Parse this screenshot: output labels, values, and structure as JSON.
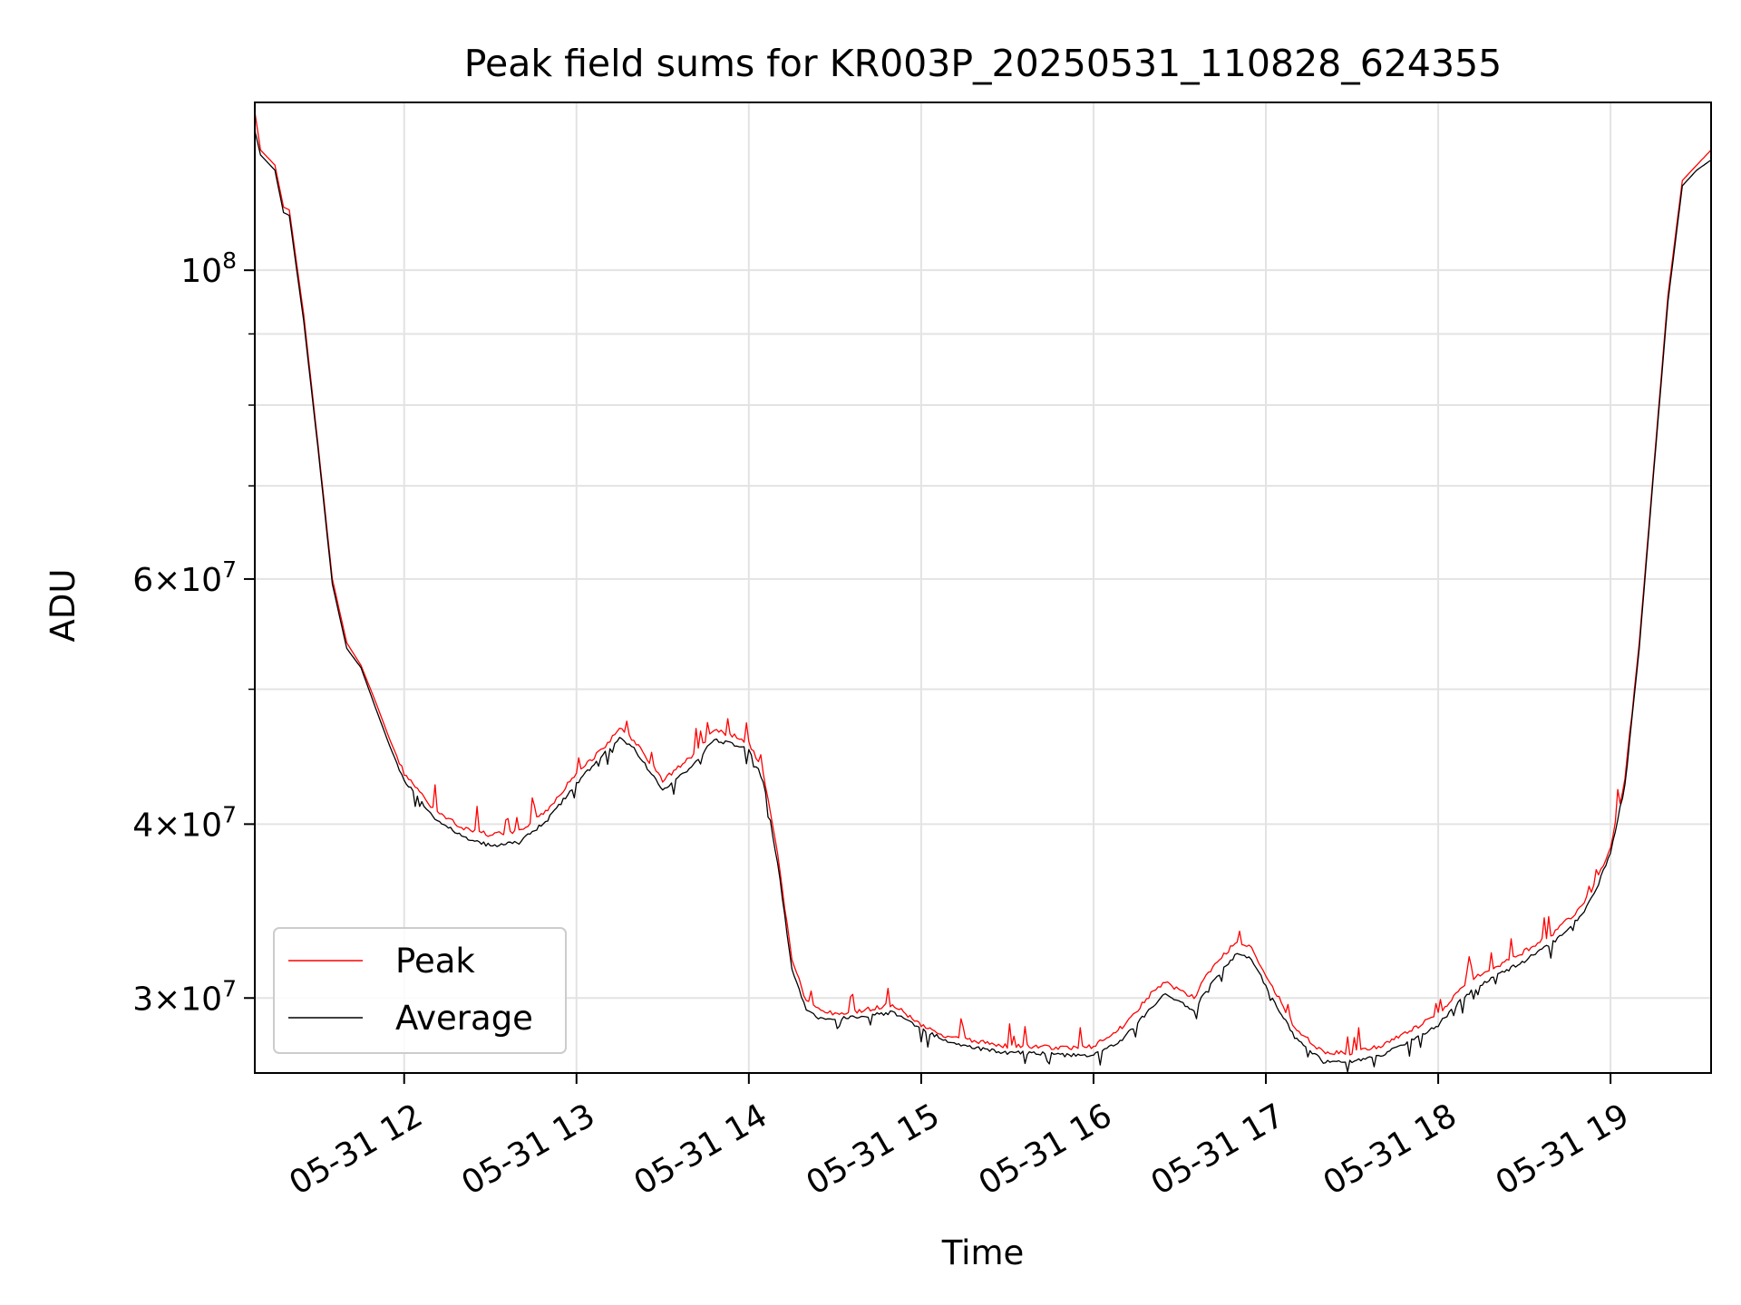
{
  "chart_data": {
    "type": "line",
    "title": "Peak field sums for KR003P_20250531_110828_624355",
    "xlabel": "Time",
    "ylabel": "ADU",
    "y_scale": "log",
    "ylim": [
      26500000,
      132000000
    ],
    "x_range": [
      "2025-05-31 11:08",
      "2025-05-31 19:35"
    ],
    "grid": true,
    "legend_position": "lower-left",
    "x_ticks": [
      {
        "label": "05-31 12",
        "value": "2025-05-31 12:00"
      },
      {
        "label": "05-31 13",
        "value": "2025-05-31 13:00"
      },
      {
        "label": "05-31 14",
        "value": "2025-05-31 14:00"
      },
      {
        "label": "05-31 15",
        "value": "2025-05-31 15:00"
      },
      {
        "label": "05-31 16",
        "value": "2025-05-31 16:00"
      },
      {
        "label": "05-31 17",
        "value": "2025-05-31 17:00"
      },
      {
        "label": "05-31 18",
        "value": "2025-05-31 18:00"
      },
      {
        "label": "05-31 19",
        "value": "2025-05-31 19:00"
      }
    ],
    "y_ticks_major": [
      {
        "label_mantissa": "3",
        "label_exponent": "7",
        "value": 30000000
      },
      {
        "label_mantissa": "4",
        "label_exponent": "7",
        "value": 40000000
      },
      {
        "label_mantissa": "6",
        "label_exponent": "7",
        "value": 60000000
      },
      {
        "label_mantissa": "",
        "label_exponent": "8",
        "value": 100000000
      }
    ],
    "y_ticks_minor": [
      50000000,
      70000000,
      80000000,
      90000000
    ],
    "times_shown": [
      "2025-05-31 11:08",
      "2025-05-31 11:10",
      "2025-05-31 11:15",
      "2025-05-31 11:18",
      "2025-05-31 11:20",
      "2025-05-31 11:25",
      "2025-05-31 11:30",
      "2025-05-31 11:35",
      "2025-05-31 11:40",
      "2025-05-31 11:45",
      "2025-05-31 11:50",
      "2025-05-31 11:55",
      "2025-05-31 12:00",
      "2025-05-31 12:10",
      "2025-05-31 12:20",
      "2025-05-31 12:30",
      "2025-05-31 12:40",
      "2025-05-31 12:50",
      "2025-05-31 13:00",
      "2025-05-31 13:10",
      "2025-05-31 13:15",
      "2025-05-31 13:20",
      "2025-05-31 13:30",
      "2025-05-31 13:40",
      "2025-05-31 13:48",
      "2025-05-31 13:55",
      "2025-05-31 14:00",
      "2025-05-31 14:05",
      "2025-05-31 14:10",
      "2025-05-31 14:15",
      "2025-05-31 14:20",
      "2025-05-31 14:25",
      "2025-05-31 14:30",
      "2025-05-31 14:40",
      "2025-05-31 14:50",
      "2025-05-31 15:00",
      "2025-05-31 15:10",
      "2025-05-31 15:20",
      "2025-05-31 15:30",
      "2025-05-31 15:40",
      "2025-05-31 15:50",
      "2025-05-31 16:00",
      "2025-05-31 16:10",
      "2025-05-31 16:20",
      "2025-05-31 16:25",
      "2025-05-31 16:35",
      "2025-05-31 16:40",
      "2025-05-31 16:50",
      "2025-05-31 16:55",
      "2025-05-31 17:00",
      "2025-05-31 17:10",
      "2025-05-31 17:20",
      "2025-05-31 17:30",
      "2025-05-31 17:40",
      "2025-05-31 17:50",
      "2025-05-31 18:00",
      "2025-05-31 18:10",
      "2025-05-31 18:20",
      "2025-05-31 18:30",
      "2025-05-31 18:40",
      "2025-05-31 18:50",
      "2025-05-31 18:55",
      "2025-05-31 19:00",
      "2025-05-31 19:05",
      "2025-05-31 19:10",
      "2025-05-31 19:15",
      "2025-05-31 19:20",
      "2025-05-31 19:25",
      "2025-05-31 19:30",
      "2025-05-31 19:35"
    ],
    "series": [
      {
        "name": "Peak",
        "color": "#ff0000",
        "values": [
          130000000,
          122000000,
          119000000,
          111000000,
          110500000,
          93000000,
          75000000,
          60000000,
          54000000,
          52000000,
          49000000,
          46000000,
          43500000,
          41000000,
          39800000,
          39300000,
          39500000,
          41000000,
          43500000,
          45500000,
          46800000,
          46000000,
          43000000,
          44700000,
          46700000,
          46300000,
          45800000,
          43500000,
          38000000,
          32000000,
          29800000,
          29400000,
          29200000,
          29400000,
          29700000,
          28700000,
          28100000,
          27900000,
          27700000,
          27700000,
          27600000,
          27700000,
          28600000,
          30200000,
          30800000,
          30000000,
          31300000,
          33000000,
          32600000,
          31200000,
          28600000,
          27400000,
          27400000,
          27700000,
          28400000,
          29200000,
          30800000,
          31600000,
          32400000,
          33400000,
          34900000,
          36300000,
          38600000,
          43000000,
          54000000,
          72000000,
          96000000,
          116000000,
          119000000,
          122000000
        ]
      },
      {
        "name": "Average",
        "color": "#000000",
        "values": [
          126000000,
          121000000,
          118000000,
          110000000,
          109500000,
          92000000,
          74500000,
          59500000,
          53500000,
          51800000,
          48500000,
          45500000,
          43000000,
          40500000,
          39200000,
          38600000,
          38800000,
          40300000,
          42800000,
          45000000,
          46200000,
          45300000,
          42300000,
          44000000,
          46000000,
          45600000,
          45200000,
          43000000,
          37500000,
          31500000,
          29400000,
          29000000,
          29000000,
          29100000,
          29300000,
          28500000,
          27900000,
          27600000,
          27400000,
          27400000,
          27300000,
          27300000,
          28000000,
          29500000,
          30200000,
          29400000,
          30600000,
          32300000,
          32000000,
          30600000,
          28100000,
          27000000,
          27000000,
          27300000,
          27900000,
          28700000,
          30200000,
          31100000,
          31900000,
          32900000,
          34400000,
          35900000,
          38200000,
          42600000,
          53500000,
          71500000,
          95000000,
          115000000,
          118000000,
          120000000
        ]
      }
    ]
  }
}
